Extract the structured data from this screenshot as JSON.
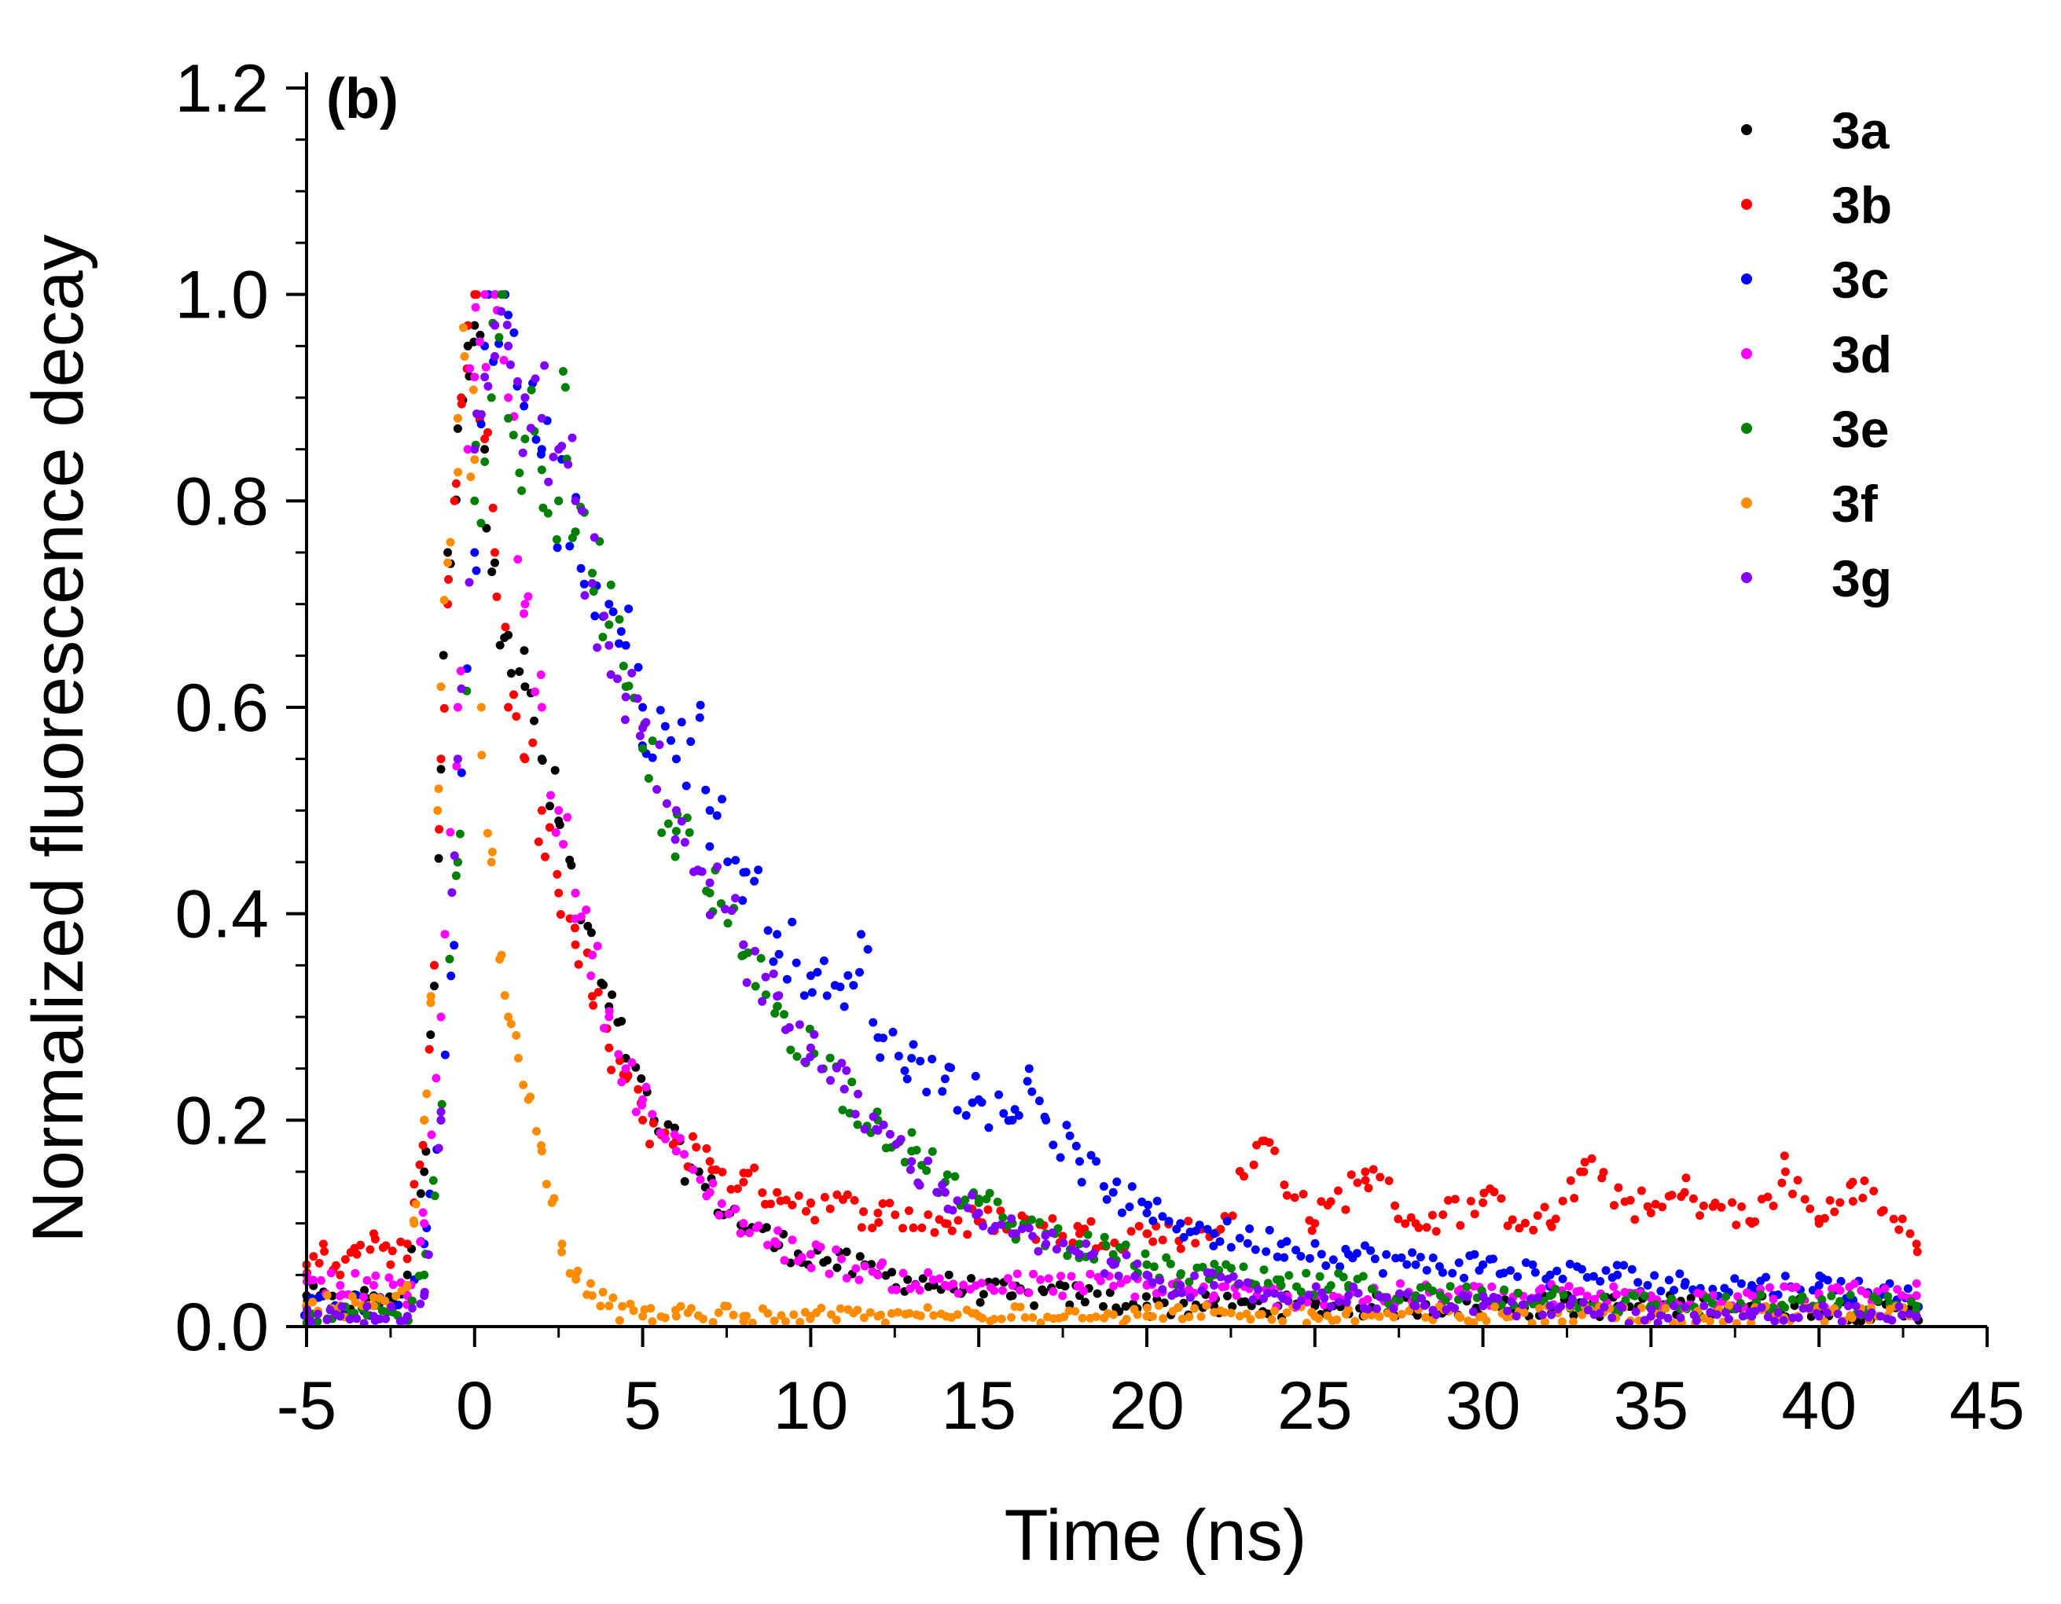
{
  "chart_data": {
    "type": "scatter",
    "panel_label": "(b)",
    "xlabel": "Time (ns)",
    "ylabel": "Normalized fluorescence decay",
    "xlim": [
      -5,
      45
    ],
    "ylim": [
      0.0,
      1.2
    ],
    "x_ticks": [
      -5,
      0,
      5,
      10,
      15,
      20,
      25,
      30,
      35,
      40,
      45
    ],
    "x_tick_labels": [
      "-5",
      "0",
      "5",
      "10",
      "15",
      "20",
      "25",
      "30",
      "35",
      "40",
      "45"
    ],
    "y_ticks": [
      0.0,
      0.2,
      0.4,
      0.6,
      0.8,
      1.0,
      1.2
    ],
    "y_tick_labels": [
      "0.0",
      "0.2",
      "0.4",
      "0.6",
      "0.8",
      "1.0",
      "1.2"
    ],
    "grid": false,
    "legend_position": "top-right",
    "series": [
      {
        "name": "3a",
        "color": "#000000",
        "x": [
          -5,
          -4,
          -3,
          -2.5,
          -2,
          -1.5,
          -1.2,
          -1,
          -0.8,
          -0.5,
          -0.2,
          0,
          0.3,
          0.6,
          1,
          1.5,
          2,
          2.5,
          3,
          3.5,
          4,
          4.5,
          5,
          6,
          7,
          8,
          9,
          10,
          12,
          14,
          16,
          18,
          20,
          22,
          25,
          28,
          30,
          32,
          35,
          38,
          40,
          42.9
        ],
        "y": [
          0.03,
          0.02,
          0.03,
          0.02,
          0.05,
          0.15,
          0.33,
          0.54,
          0.75,
          0.87,
          0.95,
          0.97,
          0.85,
          0.74,
          0.67,
          0.62,
          0.55,
          0.49,
          0.42,
          0.36,
          0.31,
          0.26,
          0.22,
          0.17,
          0.13,
          0.1,
          0.08,
          0.07,
          0.05,
          0.04,
          0.03,
          0.03,
          0.02,
          0.02,
          0.02,
          0.02,
          0.02,
          0.02,
          0.02,
          0.02,
          0.02,
          0.01
        ]
      },
      {
        "name": "3b",
        "color": "#ff0000",
        "x": [
          -5,
          -4.5,
          -4,
          -3.5,
          -3,
          -2.5,
          -2,
          -1.8,
          -1.5,
          -1.2,
          -1,
          -0.8,
          -0.6,
          -0.4,
          -0.2,
          0,
          0.3,
          0.6,
          1,
          1.5,
          2,
          2.5,
          3,
          3.5,
          4,
          4.5,
          5,
          6,
          7,
          8,
          9,
          10,
          12,
          14,
          16,
          18,
          20,
          22,
          23.5,
          25,
          26.5,
          28,
          30,
          32,
          33,
          35,
          36,
          38,
          39,
          40,
          41,
          42.9
        ],
        "y": [
          0.06,
          0.08,
          0.05,
          0.07,
          0.09,
          0.06,
          0.08,
          0.12,
          0.2,
          0.35,
          0.55,
          0.7,
          0.8,
          0.9,
          0.97,
          1.0,
          0.86,
          0.75,
          0.6,
          0.55,
          0.5,
          0.42,
          0.37,
          0.32,
          0.27,
          0.24,
          0.2,
          0.18,
          0.16,
          0.14,
          0.13,
          0.12,
          0.11,
          0.1,
          0.1,
          0.09,
          0.09,
          0.09,
          0.18,
          0.1,
          0.15,
          0.1,
          0.12,
          0.1,
          0.15,
          0.11,
          0.13,
          0.1,
          0.15,
          0.1,
          0.14,
          0.08
        ]
      },
      {
        "name": "3c",
        "color": "#0000ff",
        "x": [
          -5,
          -4,
          -3,
          -2,
          -1.5,
          -1,
          -0.5,
          0,
          0.3,
          0.6,
          1,
          1.5,
          2,
          2.5,
          3,
          3.5,
          4,
          4.5,
          5,
          6,
          6.7,
          7,
          8,
          9,
          10,
          11,
          11.5,
          12,
          13,
          14,
          15,
          16,
          16.5,
          17,
          18,
          19,
          20,
          21,
          22,
          24,
          26,
          28,
          30,
          32,
          34,
          36,
          38,
          40,
          42.9
        ],
        "y": [
          0.02,
          0.02,
          0.02,
          0.03,
          0.08,
          0.2,
          0.45,
          0.75,
          0.95,
          1.0,
          0.98,
          0.9,
          0.85,
          0.8,
          0.77,
          0.72,
          0.7,
          0.66,
          0.6,
          0.55,
          0.59,
          0.5,
          0.44,
          0.38,
          0.34,
          0.31,
          0.38,
          0.28,
          0.26,
          0.24,
          0.22,
          0.2,
          0.25,
          0.2,
          0.16,
          0.13,
          0.11,
          0.1,
          0.09,
          0.08,
          0.07,
          0.06,
          0.06,
          0.05,
          0.05,
          0.04,
          0.04,
          0.04,
          0.03
        ]
      },
      {
        "name": "3d",
        "color": "#ff00ff",
        "x": [
          -5,
          -4,
          -3,
          -2,
          -1.5,
          -1,
          -0.5,
          -0.2,
          0,
          0.3,
          0.6,
          1,
          1.5,
          2,
          2.5,
          3,
          3.5,
          4,
          4.5,
          5,
          6,
          7,
          8,
          9,
          10,
          12,
          14,
          16,
          18,
          20,
          22,
          25,
          28,
          30,
          32,
          35,
          38,
          40,
          42.9
        ],
        "y": [
          0.05,
          0.04,
          0.04,
          0.03,
          0.1,
          0.3,
          0.6,
          0.85,
          0.92,
          1.0,
          0.97,
          0.9,
          0.7,
          0.6,
          0.5,
          0.42,
          0.36,
          0.3,
          0.25,
          0.22,
          0.17,
          0.13,
          0.1,
          0.08,
          0.07,
          0.05,
          0.04,
          0.04,
          0.04,
          0.04,
          0.03,
          0.03,
          0.03,
          0.03,
          0.03,
          0.03,
          0.03,
          0.03,
          0.03
        ]
      },
      {
        "name": "3e",
        "color": "#008000",
        "x": [
          -5,
          -4,
          -3,
          -2,
          -1.5,
          -1,
          -0.5,
          0,
          0.5,
          0.8,
          1,
          1.5,
          2,
          2.5,
          2.7,
          3,
          3.5,
          4,
          4.5,
          5,
          6,
          7,
          8,
          9,
          10,
          11,
          12,
          13,
          14,
          15,
          16,
          17,
          18,
          19,
          20,
          21,
          22,
          24,
          26,
          28,
          30,
          32,
          35,
          40,
          42.9
        ],
        "y": [
          0.01,
          0.01,
          0.01,
          0.01,
          0.05,
          0.2,
          0.45,
          0.8,
          0.9,
          1.0,
          0.88,
          0.86,
          0.83,
          0.8,
          0.91,
          0.77,
          0.73,
          0.68,
          0.62,
          0.56,
          0.48,
          0.42,
          0.36,
          0.31,
          0.27,
          0.23,
          0.2,
          0.17,
          0.14,
          0.12,
          0.1,
          0.09,
          0.08,
          0.07,
          0.06,
          0.05,
          0.05,
          0.04,
          0.04,
          0.03,
          0.03,
          0.03,
          0.02,
          0.02,
          0.02
        ]
      },
      {
        "name": "3f",
        "color": "#ff8c00",
        "x": [
          -5,
          -4,
          -3,
          -2.5,
          -2,
          -1.8,
          -1.5,
          -1.3,
          -1.1,
          -1,
          -0.8,
          -0.5,
          -0.3,
          0,
          0.2,
          0.5,
          0.8,
          1,
          1.3,
          1.6,
          2,
          2.3,
          2.6,
          3,
          3.5,
          4,
          5,
          6,
          8,
          10,
          12,
          15,
          20,
          25,
          30,
          35,
          40,
          42.9
        ],
        "y": [
          0.02,
          0.02,
          0.02,
          0.02,
          0.04,
          0.1,
          0.2,
          0.32,
          0.5,
          0.62,
          0.74,
          0.88,
          0.94,
          0.84,
          0.6,
          0.45,
          0.36,
          0.3,
          0.26,
          0.22,
          0.17,
          0.12,
          0.08,
          0.05,
          0.03,
          0.02,
          0.01,
          0.01,
          0.01,
          0.01,
          0.01,
          0.01,
          0.01,
          0.01,
          0.01,
          0.01,
          0.01,
          0.01
        ]
      },
      {
        "name": "3g",
        "color": "#8000ff",
        "x": [
          -5,
          -4,
          -3,
          -2,
          -1.5,
          -1,
          -0.5,
          0,
          0.3,
          0.6,
          1,
          1.5,
          2,
          2.5,
          3,
          3.5,
          4,
          4.5,
          5,
          6,
          7,
          8,
          9,
          10,
          11,
          12,
          13,
          14,
          15,
          16,
          17,
          18,
          19,
          20,
          21,
          22,
          24,
          26,
          28,
          30,
          32,
          35,
          38,
          40,
          42.9
        ],
        "y": [
          0.01,
          0.01,
          0.01,
          0.01,
          0.03,
          0.2,
          0.55,
          0.85,
          0.92,
          0.94,
          0.95,
          0.9,
          0.88,
          0.85,
          0.8,
          0.72,
          0.66,
          0.61,
          0.58,
          0.5,
          0.43,
          0.37,
          0.32,
          0.27,
          0.23,
          0.19,
          0.16,
          0.13,
          0.11,
          0.09,
          0.08,
          0.07,
          0.06,
          0.05,
          0.04,
          0.04,
          0.03,
          0.03,
          0.02,
          0.02,
          0.02,
          0.01,
          0.01,
          0.01,
          0.01
        ]
      }
    ]
  }
}
